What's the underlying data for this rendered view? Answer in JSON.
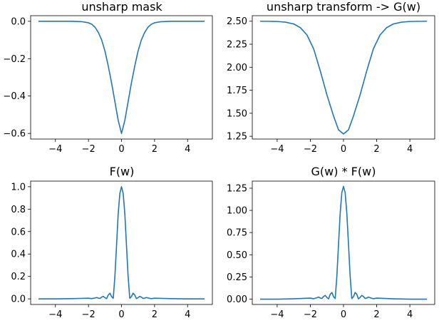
{
  "line_color": "#1f77b4",
  "chart_data": [
    {
      "type": "line",
      "title": "unsharp mask",
      "xlim": [
        -5.5,
        5.5
      ],
      "ylim": [
        -0.63,
        0.03
      ],
      "xticks": [
        -4,
        -2,
        0,
        2,
        4
      ],
      "xtick_labels": [
        "−4",
        "−2",
        "0",
        "2",
        "4"
      ],
      "yticks": [
        0.0,
        -0.2,
        -0.4,
        -0.6
      ],
      "ytick_labels": [
        "0.0",
        "−0.2",
        "−0.4",
        "−0.6"
      ],
      "series": [
        {
          "x": [
            -5,
            -4,
            -3,
            -2.4,
            -2,
            -1.8,
            -1.6,
            -1.4,
            -1.2,
            -1,
            -0.8,
            -0.6,
            -0.4,
            -0.2,
            0,
            0.2,
            0.4,
            0.6,
            0.8,
            1,
            1.2,
            1.4,
            1.6,
            1.8,
            2,
            2.4,
            3,
            4,
            5
          ],
          "y": [
            0,
            0,
            0,
            -0.002,
            -0.008,
            -0.016,
            -0.032,
            -0.06,
            -0.1,
            -0.16,
            -0.24,
            -0.33,
            -0.43,
            -0.53,
            -0.6,
            -0.53,
            -0.43,
            -0.33,
            -0.24,
            -0.16,
            -0.1,
            -0.06,
            -0.032,
            -0.016,
            -0.008,
            -0.002,
            0,
            0,
            0
          ]
        }
      ]
    },
    {
      "type": "line",
      "title": "unsharp transform -> G(w)",
      "xlim": [
        -5.5,
        5.5
      ],
      "ylim": [
        1.22,
        2.56
      ],
      "xticks": [
        -4,
        -2,
        0,
        2,
        4
      ],
      "xtick_labels": [
        "−4",
        "−2",
        "0",
        "2",
        "4"
      ],
      "yticks": [
        1.25,
        1.5,
        1.75,
        2.0,
        2.25,
        2.5
      ],
      "ytick_labels": [
        "1.25",
        "1.50",
        "1.75",
        "2.00",
        "2.25",
        "2.50"
      ],
      "series": [
        {
          "x": [
            -5,
            -4.5,
            -4,
            -3.5,
            -3,
            -2.6,
            -2.2,
            -1.8,
            -1.4,
            -1,
            -0.6,
            -0.3,
            0,
            0.3,
            0.6,
            1,
            1.4,
            1.8,
            2.2,
            2.6,
            3,
            3.5,
            4,
            4.5,
            5
          ],
          "y": [
            2.5,
            2.499,
            2.497,
            2.49,
            2.47,
            2.43,
            2.35,
            2.2,
            1.96,
            1.7,
            1.47,
            1.32,
            1.275,
            1.32,
            1.47,
            1.7,
            1.96,
            2.2,
            2.35,
            2.43,
            2.47,
            2.49,
            2.497,
            2.499,
            2.5
          ]
        }
      ]
    },
    {
      "type": "line",
      "title": "F(w)",
      "xlim": [
        -5.5,
        5.5
      ],
      "ylim": [
        -0.05,
        1.05
      ],
      "xticks": [
        -4,
        -2,
        0,
        2,
        4
      ],
      "xtick_labels": [
        "−4",
        "−2",
        "0",
        "2",
        "4"
      ],
      "yticks": [
        0.0,
        0.2,
        0.4,
        0.6,
        0.8,
        1.0
      ],
      "ytick_labels": [
        "0.0",
        "0.2",
        "0.4",
        "0.6",
        "0.8",
        "1.0"
      ],
      "series": [
        {
          "x": [
            -5,
            -4,
            -3,
            -2.5,
            -2,
            -1.8,
            -1.6,
            -1.5,
            -1.4,
            -1.3,
            -1.2,
            -1.1,
            -1,
            -0.9,
            -0.8,
            -0.7,
            -0.6,
            -0.5,
            -0.4,
            -0.3,
            -0.2,
            -0.1,
            0,
            0.1,
            0.2,
            0.3,
            0.4,
            0.5,
            0.6,
            0.7,
            0.8,
            0.9,
            1,
            1.1,
            1.2,
            1.3,
            1.4,
            1.5,
            1.6,
            1.8,
            2,
            2.5,
            3,
            4,
            5
          ],
          "y": [
            0,
            0,
            0.002,
            0.004,
            0.006,
            0.002,
            0.008,
            0.012,
            0.006,
            0.004,
            0.016,
            0.022,
            0.01,
            0.002,
            0.035,
            0.05,
            0.02,
            0.005,
            0.2,
            0.48,
            0.76,
            0.94,
            1.0,
            0.94,
            0.76,
            0.48,
            0.2,
            0.005,
            0.02,
            0.05,
            0.035,
            0.002,
            0.01,
            0.022,
            0.016,
            0.004,
            0.006,
            0.012,
            0.008,
            0.002,
            0.006,
            0.004,
            0.002,
            0,
            0
          ]
        }
      ]
    },
    {
      "type": "line",
      "title": "G(w) * F(w)",
      "xlim": [
        -5.5,
        5.5
      ],
      "ylim": [
        -0.06,
        1.33
      ],
      "xticks": [
        -4,
        -2,
        0,
        2,
        4
      ],
      "xtick_labels": [
        "−4",
        "−2",
        "0",
        "2",
        "4"
      ],
      "yticks": [
        0.0,
        0.25,
        0.5,
        0.75,
        1.0,
        1.25
      ],
      "ytick_labels": [
        "0.00",
        "0.25",
        "0.50",
        "0.75",
        "1.00",
        "1.25"
      ],
      "series": [
        {
          "x": [
            -5,
            -4,
            -3,
            -2.5,
            -2,
            -1.8,
            -1.6,
            -1.5,
            -1.4,
            -1.3,
            -1.2,
            -1.1,
            -1,
            -0.9,
            -0.8,
            -0.7,
            -0.6,
            -0.5,
            -0.4,
            -0.3,
            -0.2,
            -0.1,
            0,
            0.1,
            0.2,
            0.3,
            0.4,
            0.5,
            0.6,
            0.7,
            0.8,
            0.9,
            1,
            1.1,
            1.2,
            1.3,
            1.4,
            1.5,
            1.6,
            1.8,
            2,
            2.5,
            3,
            4,
            5
          ],
          "y": [
            0,
            0,
            0.004,
            0.008,
            0.012,
            0.004,
            0.016,
            0.024,
            0.012,
            0.008,
            0.03,
            0.042,
            0.018,
            0.003,
            0.055,
            0.075,
            0.028,
            0.007,
            0.26,
            0.62,
            0.97,
            1.2,
            1.27,
            1.2,
            0.97,
            0.62,
            0.26,
            0.007,
            0.028,
            0.075,
            0.055,
            0.003,
            0.018,
            0.042,
            0.03,
            0.008,
            0.012,
            0.024,
            0.016,
            0.004,
            0.012,
            0.008,
            0.004,
            0,
            0
          ]
        }
      ]
    }
  ]
}
